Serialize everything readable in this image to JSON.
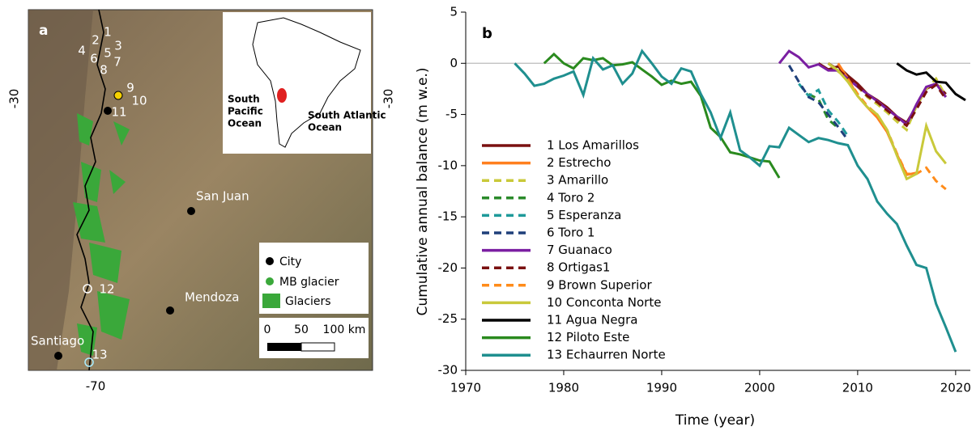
{
  "map": {
    "panel_label": "a",
    "lat_labels": [
      "-30",
      "-30"
    ],
    "lon_label": "-70",
    "glacier_labels": [
      "1",
      "2",
      "3",
      "4",
      "5",
      "6",
      "7",
      "8",
      "9",
      "10",
      "11",
      "12",
      "13"
    ],
    "cities": [
      "San Juan",
      "Mendoza",
      "Santiago"
    ],
    "inset_labels": [
      [
        "South",
        "Pacific",
        "Ocean"
      ],
      [
        "South Atlantic",
        "Ocean"
      ]
    ],
    "legend": [
      "City",
      "MB glacier",
      "Glaciers"
    ],
    "scale_labels": [
      "0",
      "50",
      "100 km"
    ]
  },
  "chart_data": {
    "type": "line",
    "panel_label": "b",
    "x_label": "Time (year)",
    "y_label": "Cumulative annual balance (m w.e.)",
    "xlim": [
      1970,
      2021.5
    ],
    "xticks": [
      1970,
      1980,
      1990,
      2000,
      2010,
      2020
    ],
    "ylim": [
      -30,
      5
    ],
    "yticks": [
      5,
      0,
      -5,
      -10,
      -15,
      -20,
      -25,
      -30
    ],
    "zero_line": true,
    "series": [
      {
        "name": "1 Los Amarillos",
        "color": "#7a1010",
        "linestyle": "solid",
        "x": [
          2006,
          2007,
          2008,
          2009,
          2010,
          2011,
          2012,
          2013,
          2014,
          2015,
          2016,
          2017,
          2018,
          2019
        ],
        "values": [
          0,
          -0.6,
          -0.3,
          -1.2,
          -2.0,
          -3.0,
          -3.6,
          -4.3,
          -5.2,
          -5.8,
          -4.2,
          -2.5,
          -2.0,
          -3.0
        ]
      },
      {
        "name": "2 Estrecho",
        "color": "#ff7f1e",
        "linestyle": "solid",
        "x": [
          2008,
          2009,
          2010,
          2011,
          2012,
          2013,
          2014,
          2015,
          2016
        ],
        "values": [
          0,
          -1.5,
          -3.2,
          -4.3,
          -5.3,
          -6.7,
          -8.9,
          -10.9,
          -10.7
        ]
      },
      {
        "name": "3 Amarillo",
        "color": "#c9c93a",
        "linestyle": "dashed",
        "x": [
          2007,
          2008,
          2009,
          2010,
          2011,
          2012,
          2013,
          2014,
          2015,
          2016,
          2017,
          2018,
          2019
        ],
        "values": [
          0,
          -0.8,
          -1.5,
          -2.3,
          -3.3,
          -4.0,
          -4.8,
          -5.7,
          -6.5,
          -4.2,
          -2.5,
          -1.5,
          -3.2
        ]
      },
      {
        "name": "4 Toro 2",
        "color": "#2a8a2a",
        "linestyle": "dashed",
        "x": [
          2005,
          2006,
          2007,
          2008
        ],
        "values": [
          -3.0,
          -3.5,
          -5.5,
          -6.3
        ]
      },
      {
        "name": "5 Esperanza",
        "color": "#1e9a9a",
        "linestyle": "dashed",
        "x": [
          2004,
          2005,
          2006,
          2007,
          2008,
          2009
        ],
        "values": [
          -2.0,
          -3.2,
          -2.6,
          -4.6,
          -5.7,
          -7.1
        ]
      },
      {
        "name": "6 Toro 1",
        "color": "#1f3f7a",
        "linestyle": "dashed",
        "x": [
          2003,
          2004,
          2005,
          2006,
          2007,
          2008,
          2009
        ],
        "values": [
          -0.2,
          -1.8,
          -3.3,
          -3.8,
          -5.0,
          -6.2,
          -7.5
        ]
      },
      {
        "name": "7 Guanaco",
        "color": "#7b1fa2",
        "linestyle": "solid",
        "x": [
          2002,
          2003,
          2004,
          2005,
          2006,
          2007,
          2008,
          2009,
          2010,
          2011,
          2012,
          2013,
          2014,
          2015,
          2016,
          2017,
          2018,
          2019
        ],
        "values": [
          0,
          1.2,
          0.6,
          -0.4,
          -0.1,
          -0.7,
          -0.7,
          -1.5,
          -2.3,
          -3.0,
          -3.7,
          -4.5,
          -5.2,
          -6.0,
          -4.0,
          -2.3,
          -2.0,
          -3.3
        ]
      },
      {
        "name": "8 Ortigas1",
        "color": "#7a1010",
        "linestyle": "dashed",
        "x": [
          2007,
          2008,
          2009,
          2010,
          2011,
          2012,
          2013,
          2014,
          2015,
          2016,
          2017,
          2018,
          2019
        ],
        "values": [
          0,
          -0.6,
          -1.4,
          -2.2,
          -3.2,
          -3.8,
          -4.6,
          -5.4,
          -6.1,
          -4.5,
          -2.8,
          -2.1,
          -3.5
        ]
      },
      {
        "name": "9 Brown Superior",
        "color": "#ff8c1a",
        "linestyle": "dashed",
        "x": [
          2009,
          2010,
          2011,
          2012,
          2013,
          2014,
          2015,
          2016,
          2017,
          2018,
          2019
        ],
        "values": [
          -1.5,
          -3.0,
          -4.2,
          -5.0,
          -6.5,
          -8.8,
          -10.8,
          -10.8,
          -10.2,
          -11.5,
          -12.3
        ]
      },
      {
        "name": "10 Conconta Norte",
        "color": "#c9c93a",
        "linestyle": "solid",
        "x": [
          2007,
          2008,
          2009,
          2010,
          2011,
          2012,
          2013,
          2014,
          2015,
          2016,
          2017,
          2018,
          2019
        ],
        "values": [
          0,
          -0.7,
          -1.8,
          -3.2,
          -4.3,
          -5.0,
          -6.5,
          -9.0,
          -11.3,
          -10.8,
          -6.1,
          -8.6,
          -9.8
        ]
      },
      {
        "name": "11 Agua Negra",
        "color": "#000000",
        "linestyle": "solid",
        "x": [
          2014,
          2015,
          2016,
          2017,
          2018,
          2019,
          2020,
          2021
        ],
        "values": [
          0,
          -0.7,
          -1.1,
          -0.9,
          -1.8,
          -1.9,
          -3.0,
          -3.6
        ]
      },
      {
        "name": "12 Piloto Este",
        "color": "#2a8a1e",
        "linestyle": "solid",
        "x": [
          1978,
          1979,
          1980,
          1981,
          1982,
          1983,
          1984,
          1985,
          1986,
          1987,
          1988,
          1989,
          1990,
          1991,
          1992,
          1993,
          1994,
          1995,
          1996,
          1997,
          1998,
          1999,
          2000,
          2001,
          2002
        ],
        "values": [
          0,
          0.9,
          0,
          -0.5,
          0.5,
          0.3,
          0.5,
          -0.2,
          -0.1,
          0.1,
          -0.6,
          -1.3,
          -2.1,
          -1.7,
          -2.0,
          -1.8,
          -3.2,
          -6.3,
          -7.2,
          -8.7,
          -8.9,
          -9.2,
          -9.5,
          -9.6,
          -11.2
        ]
      },
      {
        "name": "13 Echaurren Norte",
        "color": "#1f8f8f",
        "linestyle": "solid",
        "x": [
          1975,
          1976,
          1977,
          1978,
          1979,
          1980,
          1981,
          1982,
          1983,
          1984,
          1985,
          1986,
          1987,
          1988,
          1989,
          1990,
          1991,
          1992,
          1993,
          1994,
          1995,
          1996,
          1997,
          1998,
          1999,
          2000,
          2001,
          2002,
          2003,
          2004,
          2005,
          2006,
          2007,
          2008,
          2009,
          2010,
          2011,
          2012,
          2013,
          2014,
          2015,
          2016,
          2017,
          2018,
          2019,
          2020
        ],
        "values": [
          0,
          -1.0,
          -2.2,
          -2.0,
          -1.5,
          -1.2,
          -0.8,
          -3.1,
          0.5,
          -0.6,
          -0.2,
          -2.0,
          -1.0,
          1.2,
          0,
          -1.3,
          -2.0,
          -0.5,
          -0.8,
          -3.0,
          -4.8,
          -7.3,
          -4.8,
          -8.5,
          -9.2,
          -10.0,
          -8.1,
          -8.2,
          -6.3,
          -7.0,
          -7.7,
          -7.3,
          -7.5,
          -7.8,
          -8.0,
          -10.0,
          -11.3,
          -13.5,
          -14.7,
          -15.7,
          -17.8,
          -19.7,
          -20.0,
          -23.5,
          -25.8,
          -28.2
        ]
      }
    ]
  }
}
